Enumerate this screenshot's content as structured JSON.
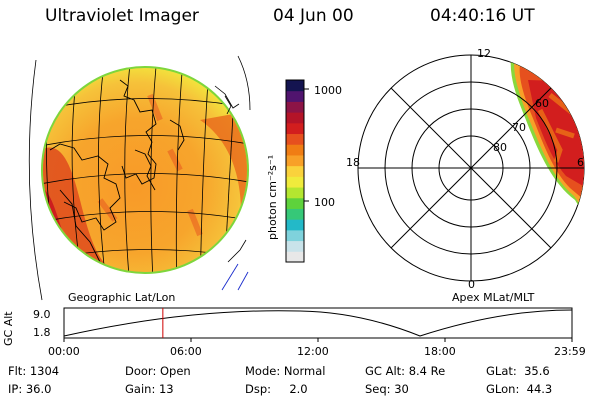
{
  "header": {
    "instrument": "Ultraviolet Imager",
    "date": "04 Jun 00",
    "time": "04:40:16 UT"
  },
  "globe_panel": {
    "caption": "Geographic Lat/Lon"
  },
  "colorbar": {
    "units": "photon cm⁻²s⁻¹",
    "ticks": [
      {
        "label": "1000",
        "value": 1000
      },
      {
        "label": "100",
        "value": 100
      }
    ],
    "colors": [
      "#e8e8e8",
      "#c9e3ea",
      "#7fd2dc",
      "#23b9c8",
      "#36c878",
      "#5ed23c",
      "#b4e630",
      "#f0eb3c",
      "#fad23c",
      "#f8a028",
      "#f07d14",
      "#e6501e",
      "#d21e1e",
      "#b41428",
      "#8c1446",
      "#50146e",
      "#141450"
    ]
  },
  "polar_panel": {
    "caption": "Apex MLat/MLT",
    "mlt_labels": [
      "12",
      "18",
      "6",
      "0"
    ],
    "lat_labels": [
      "60",
      "70",
      "80"
    ]
  },
  "altitude_plot": {
    "ylabel": "GC Alt",
    "yticks": [
      "9.0",
      "1.8"
    ],
    "xticks": [
      "00:00",
      "06:00",
      "12:00",
      "18:00",
      "23:59"
    ],
    "current_time_hours": 4.67,
    "marker_color": "#d00000"
  },
  "info": {
    "rows": [
      [
        {
          "label": "Flt:",
          "value": "1304"
        },
        {
          "label": "Door:",
          "value": "Open"
        },
        {
          "label": "Mode:",
          "value": "Normal"
        },
        {
          "label": "GC Alt:",
          "value": "8.4 Re"
        },
        {
          "label": "GLat:",
          "value": "35.6"
        }
      ],
      [
        {
          "label": "IP:",
          "value": "36.0"
        },
        {
          "label": "Gain:",
          "value": "13"
        },
        {
          "label": "Dsp:",
          "value": "2.0"
        },
        {
          "label": "Seq:",
          "value": "30"
        },
        {
          "label": "GLon:",
          "value": "44.3"
        }
      ]
    ]
  }
}
